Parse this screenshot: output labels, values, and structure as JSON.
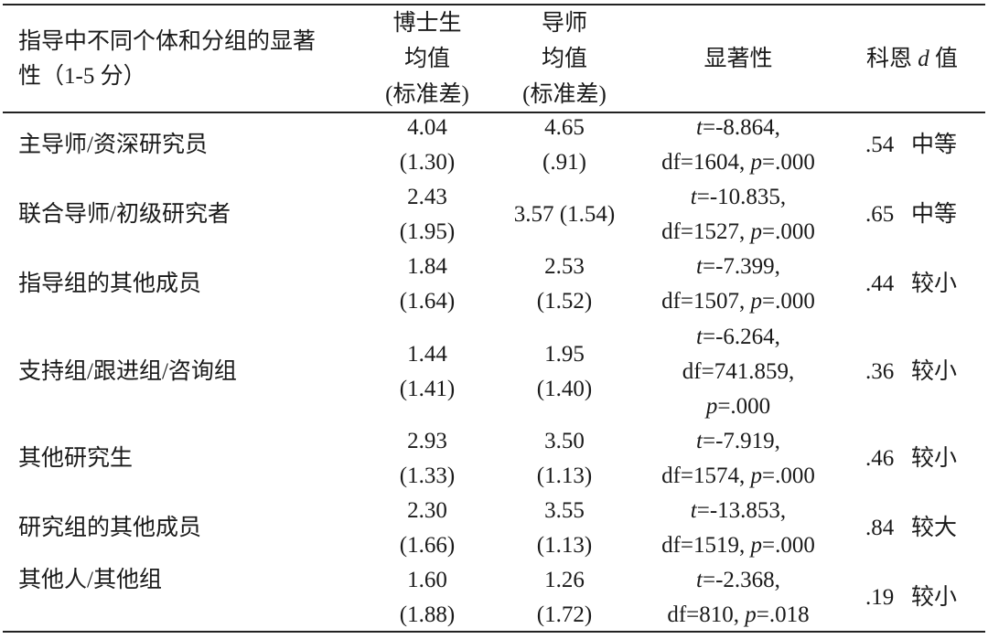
{
  "header": {
    "label_line1": "指导中不同个体和分组的显著",
    "label_line2": "性（1-5 分）",
    "phd_line1": "博士生",
    "phd_line2": "均值",
    "phd_line3": "(标准差)",
    "sup_line1": "导师",
    "sup_line2": "均值",
    "sup_line3": "(标准差)",
    "sig": "显著性",
    "cohen_pre": "科恩 ",
    "cohen_d": "d",
    "cohen_post": " 值"
  },
  "rows": [
    {
      "label": "主导师/资深研究员",
      "phd_mean": "4.04",
      "phd_sd": "(1.30)",
      "sup_mean": "4.65",
      "sup_sd": "(.91)",
      "sig_t": "=-8.864,",
      "sig_df": "df=1604, ",
      "sig_p": "=.000",
      "d": ".54",
      "effect": "中等"
    },
    {
      "label": "联合导师/初级研究者",
      "phd_mean": "2.43",
      "phd_sd": "(1.95)",
      "sup_text": "3.57 (1.54)",
      "sig_t": "=-10.835,",
      "sig_df": "df=1527, ",
      "sig_p": "=.000",
      "d": ".65",
      "effect": "中等"
    },
    {
      "label": "指导组的其他成员",
      "phd_mean": "1.84",
      "phd_sd": "(1.64)",
      "sup_mean": "2.53",
      "sup_sd": "(1.52)",
      "sig_t": "=-7.399,",
      "sig_df": "df=1507, ",
      "sig_p": "=.000",
      "d": ".44",
      "effect": "较小"
    },
    {
      "label": "支持组/跟进组/咨询组",
      "phd_mean": "1.44",
      "phd_sd": "(1.41)",
      "sup_mean": "1.95",
      "sup_sd": "(1.40)",
      "sig_t": "=-6.264,",
      "sig_df": "df=741.859,",
      "sig_p": "=.000",
      "d": ".36",
      "effect": "较小"
    },
    {
      "label": "其他研究生",
      "phd_mean": "2.93",
      "phd_sd": "(1.33)",
      "sup_mean": "3.50",
      "sup_sd": "(1.13)",
      "sig_t": "=-7.919,",
      "sig_df": "df=1574, ",
      "sig_p": "=.000",
      "d": ".46",
      "effect": "较小"
    },
    {
      "label": "研究组的其他成员",
      "phd_mean": "2.30",
      "phd_sd": "(1.66)",
      "sup_mean": "3.55",
      "sup_sd": "(1.13)",
      "sig_t": "=-13.853,",
      "sig_df": "df=1519, ",
      "sig_p": "=.000",
      "d": ".84",
      "effect": "较大"
    },
    {
      "label": "其他人/其他组",
      "phd_mean": "1.60",
      "phd_sd": "(1.88)",
      "sup_mean": "1.26",
      "sup_sd": "(1.72)",
      "sig_t": "=-2.368,",
      "sig_df": "df=810, ",
      "sig_p": "=.018",
      "d": ".19",
      "effect": "较小"
    }
  ],
  "sym": {
    "t": "t",
    "p": "p"
  }
}
